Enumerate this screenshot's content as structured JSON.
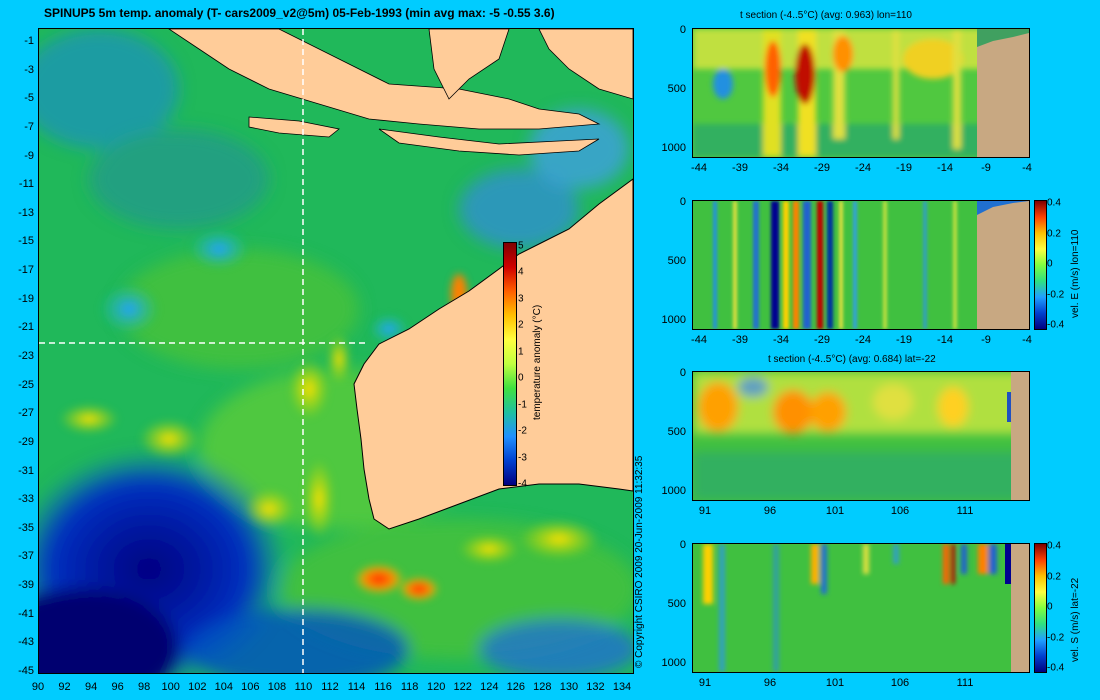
{
  "map": {
    "title": "SPINUP5 5m temp. anomaly  (T- cars2009_v2@5m) 05-Feb-1993 (min avg max: -5 -0.55 3.6)",
    "lat_ticks": [
      "-1",
      "-3",
      "-5",
      "-7",
      "-9",
      "-11",
      "-13",
      "-15",
      "-17",
      "-19",
      "-21",
      "-23",
      "-25",
      "-27",
      "-29",
      "-31",
      "-33",
      "-35",
      "-37",
      "-39",
      "-41",
      "-43",
      "-45"
    ],
    "lon_ticks": [
      "90",
      "92",
      "94",
      "96",
      "98",
      "100",
      "102",
      "104",
      "106",
      "108",
      "110",
      "112",
      "114",
      "116",
      "118",
      "120",
      "122",
      "124",
      "126",
      "128",
      "130",
      "132",
      "134"
    ],
    "section_lon": 110,
    "section_lat": -22,
    "colorbar": {
      "label": "temperature anomaly (°C)",
      "ticks": [
        "5",
        "4",
        "3",
        "2",
        "1",
        "0",
        "-1",
        "-2",
        "-3",
        "-4"
      ]
    },
    "copyright": "© Copyright CSIRO 2009   20-Jun-2009 11:32:35",
    "colors": {
      "ocean_base": "#22c060",
      "land": "#ffcc99",
      "cold": "#000090",
      "warm": "#ff3000"
    }
  },
  "panels": [
    {
      "title": "t section (-4..5°C) (avg: 0.963) lon=110",
      "x_ticks": [
        "-44",
        "-39",
        "-34",
        "-29",
        "-24",
        "-19",
        "-14",
        "-9",
        "-4"
      ],
      "y_ticks": [
        "0",
        "500",
        "1000"
      ],
      "colorbar": null
    },
    {
      "title": "",
      "x_ticks": [
        "-44",
        "-39",
        "-34",
        "-29",
        "-24",
        "-19",
        "-14",
        "-9",
        "-4"
      ],
      "y_ticks": [
        "0",
        "500",
        "1000"
      ],
      "colorbar": {
        "label": "vel. E (m/s) lon=110",
        "ticks": [
          "0.4",
          "0.2",
          "0",
          "-0.2",
          "-0.4"
        ]
      }
    },
    {
      "title": "t section (-4..5°C) (avg: 0.684) lat=-22",
      "x_ticks": [
        "91",
        "96",
        "101",
        "106",
        "111"
      ],
      "y_ticks": [
        "0",
        "500",
        "1000"
      ],
      "colorbar": null
    },
    {
      "title": "",
      "x_ticks": [
        "91",
        "96",
        "101",
        "106",
        "111"
      ],
      "y_ticks": [
        "0",
        "500",
        "1000"
      ],
      "colorbar": {
        "label": "vel. S (m/s) lat=-22",
        "ticks": [
          "0.4",
          "0.2",
          "0",
          "-0.2",
          "-0.4"
        ]
      }
    }
  ]
}
